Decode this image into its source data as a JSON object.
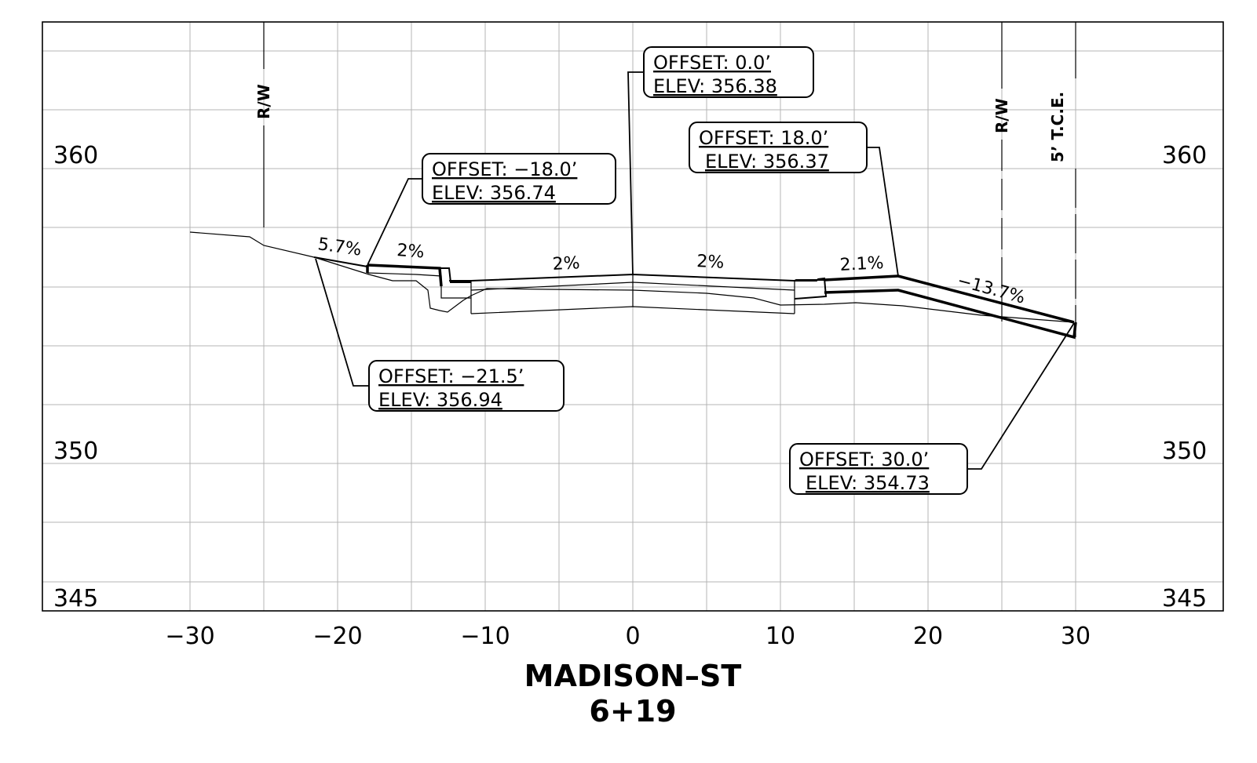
{
  "title": {
    "line1": "MADISON–ST",
    "line2": "6+19"
  },
  "axes": {
    "x_ticks": [
      "−30",
      "−20",
      "−10",
      "0",
      "10",
      "20",
      "30"
    ],
    "elev_labels_left": [
      "360",
      "350",
      "345"
    ],
    "elev_labels_right": [
      "360",
      "350",
      "345"
    ]
  },
  "markers": {
    "rw_left": "R/W",
    "rw_right": "R/W",
    "tce": "5’ T.C.E."
  },
  "callouts": [
    {
      "offset": "OFFSET:  0.0’",
      "elev": "ELEV:  356.38"
    },
    {
      "offset": "OFFSET:  18.0’",
      "elev": "ELEV:  356.37"
    },
    {
      "offset": "OFFSET:  −18.0’",
      "elev": "ELEV:  356.74"
    },
    {
      "offset": "OFFSET:  −21.5’",
      "elev": "ELEV:  356.94"
    },
    {
      "offset": "OFFSET:  30.0’",
      "elev": "ELEV:  354.73"
    }
  ],
  "slopes": [
    "5.7%",
    "2%",
    "2%",
    "2%",
    "2.1%",
    "−13.7%"
  ]
}
